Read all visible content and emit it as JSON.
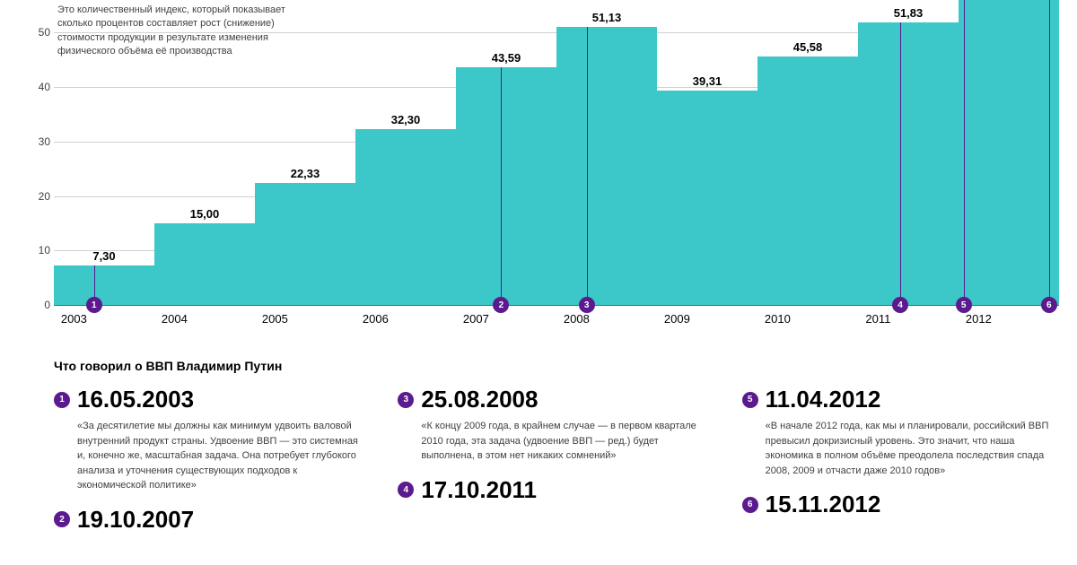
{
  "chart": {
    "type": "step-bar",
    "bar_color": "#3cc7c8",
    "grid_color": "#d0d0d0",
    "axis_color": "#606060",
    "marker_color": "#5b1a8e",
    "marker_line_color": "#5b1a8e",
    "background_color": "#ffffff",
    "ylim": [
      0,
      56
    ],
    "yticks": [
      0,
      10,
      20,
      30,
      40,
      50
    ],
    "ytick_fontsize": 12,
    "label_fontsize": 13,
    "years": [
      "2003",
      "2004",
      "2005",
      "2006",
      "2007",
      "2008",
      "2009",
      "2010",
      "2011",
      "2012"
    ],
    "values": [
      7.3,
      15.0,
      22.33,
      32.3,
      43.59,
      51.13,
      39.31,
      45.58,
      51.83,
      56.0
    ],
    "value_labels": [
      "7,30",
      "15,00",
      "22,33",
      "32,30",
      "43,59",
      "51,13",
      "39,31",
      "45,58",
      "51,83",
      ""
    ],
    "markers": [
      {
        "n": "1",
        "pos": 0.04
      },
      {
        "n": "2",
        "pos": 0.445
      },
      {
        "n": "3",
        "pos": 0.53
      },
      {
        "n": "4",
        "pos": 0.842
      },
      {
        "n": "5",
        "pos": 0.905
      },
      {
        "n": "6",
        "pos": 0.99
      }
    ],
    "description": "Это количественный индекс, который показывает сколько процентов составляет рост (снижение) стоимости продукции в результате изменения физического объёма её производства"
  },
  "quotes": {
    "header": "Что говорил о ВВП Владимир Путин",
    "marker_color": "#5b1a8e",
    "date_fontsize": 26,
    "body_fontsize": 11,
    "columns": [
      [
        {
          "n": "1",
          "date": "16.05.2003",
          "body": "«За десятилетие мы должны как минимум удвоить валовой внутренний продукт страны. Удвоение ВВП — это системная и, конечно же, масштабная задача. Она потребует глубокого анализа и уточнения существующих подходов к экономической политике»"
        },
        {
          "n": "2",
          "date": "19.10.2007",
          "body": ""
        }
      ],
      [
        {
          "n": "3",
          "date": "25.08.2008",
          "body": "«К концу 2009 года, в крайнем случае — в первом квартале 2010 года, эта задача (удвоение ВВП — ред.) будет выполнена, в этом нет никаких сомнений»"
        },
        {
          "n": "4",
          "date": "17.10.2011",
          "body": ""
        }
      ],
      [
        {
          "n": "5",
          "date": "11.04.2012",
          "body": "«В начале 2012 года, как мы и планировали, российский ВВП превысил докризисный уровень. Это значит, что наша экономика в полном объёме преодолела последствия спада 2008, 2009 и отчасти даже 2010 годов»"
        },
        {
          "n": "6",
          "date": "15.11.2012",
          "body": ""
        }
      ]
    ]
  }
}
